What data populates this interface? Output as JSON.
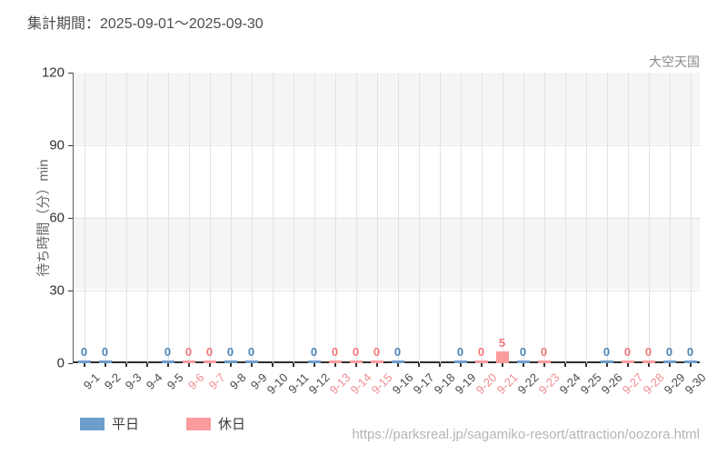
{
  "chart_data": {
    "type": "bar",
    "title": "集計期間：2025-09-01～2025-09-30",
    "watermark": "大空天国",
    "ylabel": "待ち時間（分）min",
    "ylim": [
      0,
      120
    ],
    "yticks": [
      0,
      30,
      60,
      90,
      120
    ],
    "grid": "vertical",
    "legend_position": "bottom-left",
    "legend": {
      "weekday": "平日",
      "holiday": "休日"
    },
    "days": [
      {
        "label": "9-1",
        "type": "weekday",
        "value": 0
      },
      {
        "label": "9-2",
        "type": "weekday",
        "value": 0
      },
      {
        "label": "9-3",
        "type": "weekday",
        "value": null
      },
      {
        "label": "9-4",
        "type": "weekday",
        "value": null
      },
      {
        "label": "9-5",
        "type": "weekday",
        "value": 0
      },
      {
        "label": "9-6",
        "type": "holiday",
        "value": 0
      },
      {
        "label": "9-7",
        "type": "holiday",
        "value": 0
      },
      {
        "label": "9-8",
        "type": "weekday",
        "value": 0
      },
      {
        "label": "9-9",
        "type": "weekday",
        "value": 0
      },
      {
        "label": "9-10",
        "type": "weekday",
        "value": null
      },
      {
        "label": "9-11",
        "type": "weekday",
        "value": null
      },
      {
        "label": "9-12",
        "type": "weekday",
        "value": 0
      },
      {
        "label": "9-13",
        "type": "holiday",
        "value": 0
      },
      {
        "label": "9-14",
        "type": "holiday",
        "value": 0
      },
      {
        "label": "9-15",
        "type": "holiday",
        "value": 0
      },
      {
        "label": "9-16",
        "type": "weekday",
        "value": 0
      },
      {
        "label": "9-17",
        "type": "weekday",
        "value": null
      },
      {
        "label": "9-18",
        "type": "weekday",
        "value": null
      },
      {
        "label": "9-19",
        "type": "weekday",
        "value": 0
      },
      {
        "label": "9-20",
        "type": "holiday",
        "value": 0
      },
      {
        "label": "9-21",
        "type": "holiday",
        "value": 5
      },
      {
        "label": "9-22",
        "type": "weekday",
        "value": 0
      },
      {
        "label": "9-23",
        "type": "holiday",
        "value": 0
      },
      {
        "label": "9-24",
        "type": "weekday",
        "value": null
      },
      {
        "label": "9-25",
        "type": "weekday",
        "value": null
      },
      {
        "label": "9-26",
        "type": "weekday",
        "value": 0
      },
      {
        "label": "9-27",
        "type": "holiday",
        "value": 0
      },
      {
        "label": "9-28",
        "type": "holiday",
        "value": 0
      },
      {
        "label": "9-29",
        "type": "weekday",
        "value": 0
      },
      {
        "label": "9-30",
        "type": "weekday",
        "value": 0
      }
    ],
    "colors": {
      "weekday": "#6f9dc9",
      "holiday": "#fb9b9e",
      "weekday_label": "#4d86ba",
      "holiday_label": "#f2787d",
      "tick_weekday": "#4a4a4a",
      "tick_holiday": "#f08d90",
      "grid": "#e3e3e3",
      "hgrid": "#e8e8e8",
      "axis": "#333333",
      "ytick_text": "#333333"
    }
  },
  "footer": {
    "url": "https://parksreal.jp/sagamiko-resort/attraction/oozora.html"
  }
}
